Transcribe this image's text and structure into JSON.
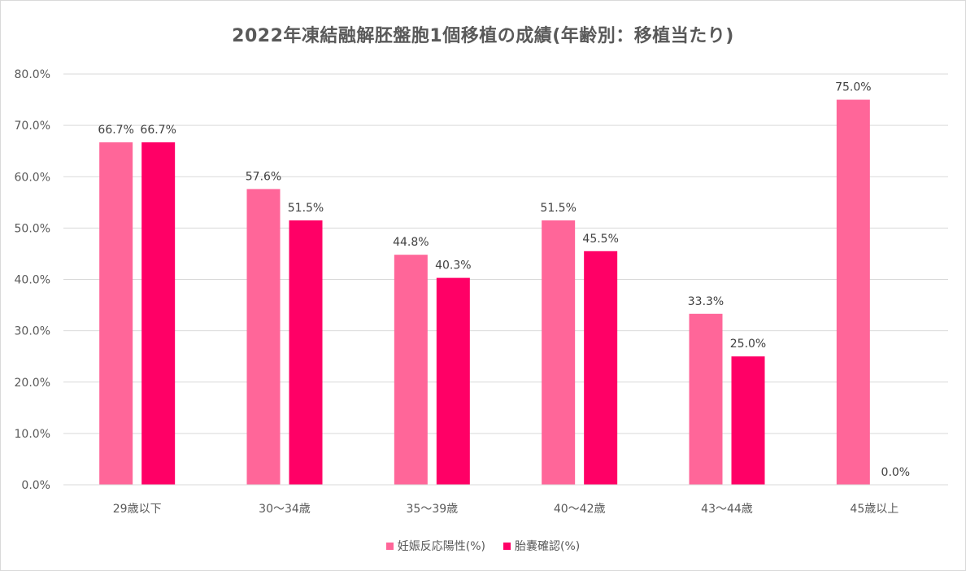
{
  "chart_data": {
    "type": "bar",
    "title": "2022年凍結融解胚盤胞1個移植の成績(年齢別：移植当たり)",
    "categories": [
      "29歳以下",
      "30～34歳",
      "35～39歳",
      "40～42歳",
      "43～44歳",
      "45歳以上"
    ],
    "series": [
      {
        "name": "妊娠反応陽性(%)",
        "color": "#ff6699",
        "values": [
          66.7,
          57.6,
          44.8,
          51.5,
          33.3,
          75.0
        ],
        "labels": [
          "66.7%",
          "57.6%",
          "44.8%",
          "51.5%",
          "33.3%",
          "75.0%"
        ]
      },
      {
        "name": "胎嚢確認(%)",
        "color": "#ff0066",
        "values": [
          66.7,
          51.5,
          40.3,
          45.5,
          25.0,
          0.0
        ],
        "labels": [
          "66.7%",
          "51.5%",
          "40.3%",
          "45.5%",
          "25.0%",
          "0.0%"
        ]
      }
    ],
    "y_ticks": [
      "0.0%",
      "10.0%",
      "20.0%",
      "30.0%",
      "40.0%",
      "50.0%",
      "60.0%",
      "70.0%",
      "80.0%"
    ],
    "ylim": [
      0,
      80
    ],
    "grid": true,
    "legend_position": "bottom"
  }
}
